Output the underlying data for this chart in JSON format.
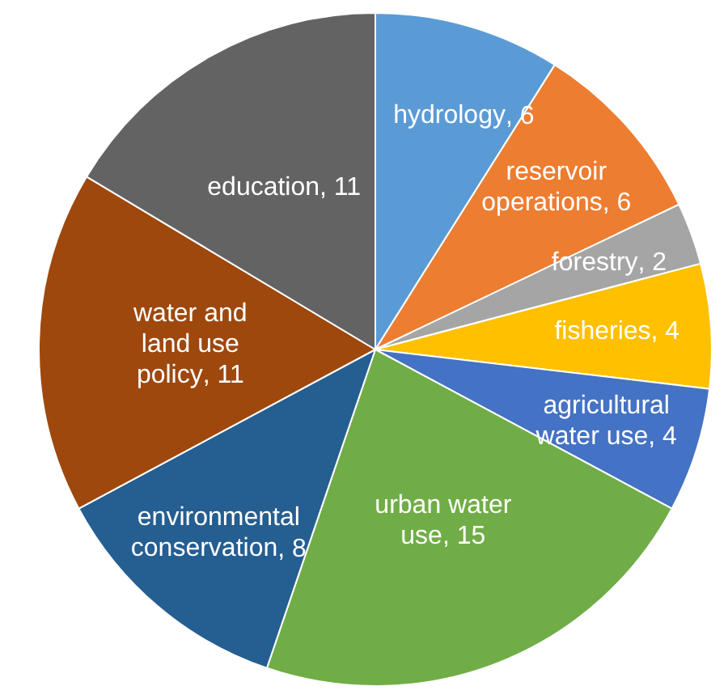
{
  "chart_data": {
    "type": "pie",
    "categories": [
      "hydrology",
      "reservoir operations",
      "forestry",
      "fisheries",
      "agricultural water use",
      "urban water use",
      "environmental conservation",
      "water and land use policy",
      "education"
    ],
    "values": [
      6,
      6,
      2,
      4,
      4,
      15,
      8,
      11,
      11
    ],
    "colors": [
      "#5b9bd5",
      "#ed7d31",
      "#a5a5a5",
      "#ffc000",
      "#4472c4",
      "#70ad47",
      "#255e91",
      "#9e480e",
      "#636363"
    ],
    "value_labels": [
      ", 6",
      ", 6",
      ", 2",
      ", 4",
      ", 4",
      ", 15",
      ", 8",
      ", 11",
      ", 11"
    ]
  }
}
